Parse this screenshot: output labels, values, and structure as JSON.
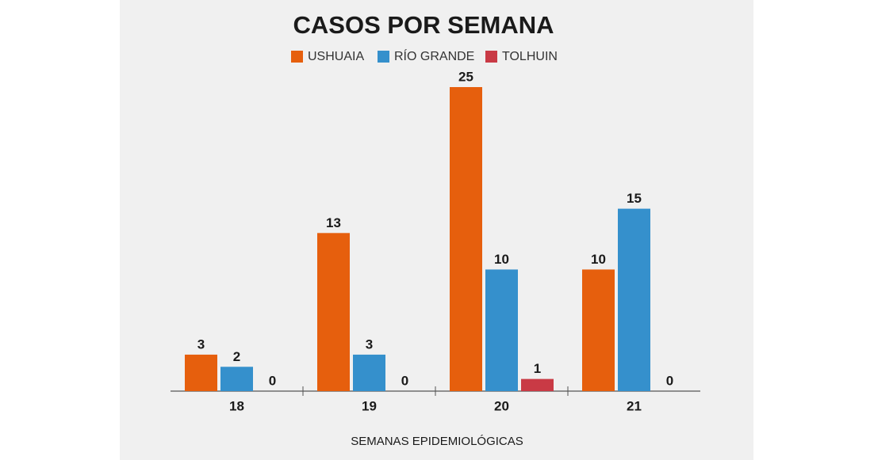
{
  "chart_data": {
    "type": "bar",
    "title": "CASOS POR SEMANA",
    "x_label": "SEMANAS EPIDEMIOLÓGICAS",
    "categories": [
      "18",
      "19",
      "20",
      "21"
    ],
    "series": [
      {
        "name": "USHUAIA",
        "color": "#e65f0d",
        "values": [
          3,
          13,
          25,
          10
        ]
      },
      {
        "name": "RÍO GRANDE",
        "color": "#3590cc",
        "values": [
          2,
          3,
          10,
          15
        ]
      },
      {
        "name": "TOLHUIN",
        "color": "#c93a45",
        "values": [
          0,
          0,
          1,
          0
        ]
      }
    ]
  }
}
